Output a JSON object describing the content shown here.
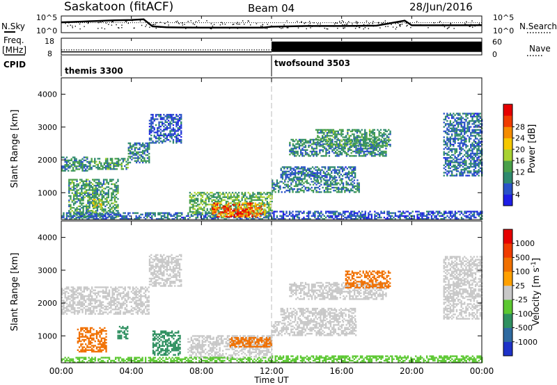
{
  "header": {
    "station": "Saskatoon (fitACF)",
    "beam": "Beam 04",
    "date": "28/Jun/2016"
  },
  "strip_labels": {
    "nsky": "N.Sky",
    "nsearch": "N.Search",
    "freq_top": "Freq.",
    "freq_unit": "[MHz]",
    "nave": "Nave",
    "cpid": "CPID",
    "nsky_ticks": [
      "10^5",
      "10^0"
    ],
    "nsearch_ticks": [
      "10^5",
      "10^0"
    ],
    "freq_ticks": [
      "18",
      "8"
    ],
    "nave_ticks": [
      "60",
      "0"
    ]
  },
  "cpid": [
    {
      "name": "themis 3300",
      "start_hour": 0
    },
    {
      "name": "twofsound 3503",
      "start_hour": 12
    }
  ],
  "colors": {
    "power": [
      "#1e1ee6",
      "#2a52c8",
      "#2f8a6e",
      "#4aa04a",
      "#a8d232",
      "#f5c800",
      "#f58c00",
      "#f03c00",
      "#e60000"
    ],
    "velocity": [
      "#1e32c8",
      "#2f6aa0",
      "#2f9060",
      "#5cc832",
      "#c8c8c8",
      "#ffa000",
      "#f07000",
      "#f03c00",
      "#e60000"
    ]
  },
  "chart_data": [
    {
      "type": "line",
      "name": "N.Sky / N.Search",
      "x_unit": "hour UT",
      "x": [
        0,
        1,
        2,
        3,
        4,
        4.7,
        5.2,
        6,
        8,
        10,
        11.5,
        12,
        14,
        16,
        18,
        19.6,
        20,
        22,
        24
      ],
      "y_fraction": [
        0.62,
        0.66,
        0.7,
        0.74,
        0.76,
        0.8,
        0.38,
        0.32,
        0.3,
        0.3,
        0.3,
        0.36,
        0.4,
        0.4,
        0.42,
        0.72,
        0.44,
        0.44,
        0.45
      ]
    },
    {
      "type": "line",
      "name": "Freq / Nave",
      "x_unit": "hour UT",
      "x": [
        0,
        12,
        12,
        24
      ],
      "y_fraction": [
        0.3,
        0.3,
        0.8,
        0.8
      ],
      "ticks": {
        "freq": [
          8,
          18
        ],
        "nave": [
          0,
          60
        ]
      }
    },
    {
      "type": "heatmap",
      "name": "Power",
      "title": "",
      "xlabel": "",
      "ylabel": "Slant Range [km]",
      "colorbar_label": "Power [dB]",
      "colorbar_ticks": [
        4,
        8,
        12,
        16,
        20,
        24,
        28
      ],
      "xlim": [
        0,
        24
      ],
      "ylim": [
        180,
        4500
      ],
      "y_ticks": [
        1000,
        2000,
        3000,
        4000
      ],
      "echo_regions": [
        {
          "t0": 0.0,
          "t1": 1.6,
          "r0": 1650,
          "r1": 2100,
          "value": 10
        },
        {
          "t0": 1.6,
          "t1": 3.8,
          "r0": 1700,
          "r1": 2050,
          "value": 12
        },
        {
          "t0": 3.8,
          "t1": 5.0,
          "r0": 1900,
          "r1": 2500,
          "value": 10
        },
        {
          "t0": 5.0,
          "t1": 6.8,
          "r0": 2500,
          "r1": 3400,
          "value": 6
        },
        {
          "t0": 0.4,
          "t1": 3.2,
          "r0": 250,
          "r1": 1400,
          "value": 12
        },
        {
          "t0": 1.8,
          "t1": 2.3,
          "r0": 500,
          "r1": 800,
          "value": 18
        },
        {
          "t0": 0.0,
          "t1": 12.0,
          "r0": 180,
          "r1": 380,
          "value": 8
        },
        {
          "t0": 7.3,
          "t1": 12.0,
          "r0": 350,
          "r1": 1000,
          "value": 14
        },
        {
          "t0": 8.6,
          "t1": 11.6,
          "r0": 250,
          "r1": 700,
          "value": 26
        },
        {
          "t0": 9.3,
          "t1": 10.8,
          "r0": 250,
          "r1": 500,
          "value": 30
        },
        {
          "t0": 12.0,
          "t1": 17.0,
          "r0": 1000,
          "r1": 1400,
          "value": 10
        },
        {
          "t0": 12.5,
          "t1": 16.8,
          "r0": 1400,
          "r1": 1800,
          "value": 8
        },
        {
          "t0": 13.0,
          "t1": 18.5,
          "r0": 2100,
          "r1": 2600,
          "value": 10
        },
        {
          "t0": 14.5,
          "t1": 18.8,
          "r0": 2400,
          "r1": 2900,
          "value": 12
        },
        {
          "t0": 12.0,
          "t1": 24.0,
          "r0": 180,
          "r1": 450,
          "value": 6
        },
        {
          "t0": 21.8,
          "t1": 24.0,
          "r0": 1500,
          "r1": 3400,
          "value": 8
        }
      ]
    },
    {
      "type": "heatmap",
      "name": "Velocity",
      "title": "",
      "xlabel": "Time UT",
      "ylabel": "Slant Range [km]",
      "colorbar_label": "Velocity [m s^-1]",
      "colorbar_ticks": [
        "1000",
        "500",
        "100",
        "25",
        "-25",
        "-100",
        "-500",
        "-1000"
      ],
      "xlim": [
        0,
        24
      ],
      "ylim": [
        180,
        4500
      ],
      "x_ticks": [
        "00:00",
        "04:00",
        "08:00",
        "12:00",
        "16:00",
        "20:00",
        "00:00"
      ],
      "y_ticks": [
        1000,
        2000,
        3000,
        4000
      ],
      "echo_regions": [
        {
          "t0": 0.0,
          "t1": 5.0,
          "r0": 1650,
          "r1": 2500,
          "value": 0
        },
        {
          "t0": 5.0,
          "t1": 6.8,
          "r0": 2500,
          "r1": 3450,
          "value": 0
        },
        {
          "t0": 0.9,
          "t1": 2.6,
          "r0": 500,
          "r1": 1250,
          "value": -200
        },
        {
          "t0": 3.2,
          "t1": 3.8,
          "r0": 900,
          "r1": 1300,
          "value": 300
        },
        {
          "t0": 5.2,
          "t1": 6.8,
          "r0": 400,
          "r1": 1150,
          "value": 200
        },
        {
          "t0": 7.2,
          "t1": 12.0,
          "r0": 300,
          "r1": 1000,
          "value": 0
        },
        {
          "t0": 9.6,
          "t1": 12.0,
          "r0": 650,
          "r1": 950,
          "value": -150
        },
        {
          "t0": 0.0,
          "t1": 12.0,
          "r0": 180,
          "r1": 350,
          "value": 80
        },
        {
          "t0": 12.0,
          "t1": 16.8,
          "r0": 1000,
          "r1": 1450,
          "value": 0
        },
        {
          "t0": 12.5,
          "t1": 16.8,
          "r0": 1450,
          "r1": 1850,
          "value": 0
        },
        {
          "t0": 13.0,
          "t1": 18.5,
          "r0": 2100,
          "r1": 2600,
          "value": 0
        },
        {
          "t0": 16.2,
          "t1": 18.8,
          "r0": 2450,
          "r1": 2950,
          "value": -300
        },
        {
          "t0": 12.0,
          "t1": 24.0,
          "r0": 180,
          "r1": 400,
          "value": 80
        },
        {
          "t0": 21.8,
          "t1": 24.0,
          "r0": 1500,
          "r1": 3400,
          "value": 0
        }
      ]
    }
  ]
}
